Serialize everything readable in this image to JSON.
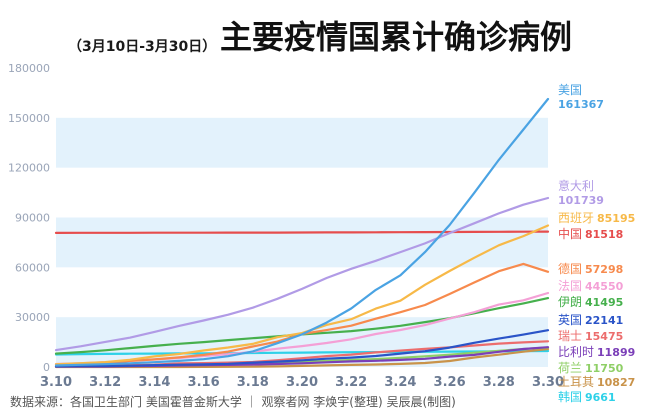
{
  "header": {
    "subtitle": "（3月10日-3月30日）",
    "title": "主要疫情国累计确诊病例"
  },
  "source": "数据来源：各国卫生部门 美国霍普金斯大学 ｜ 观察者网 李焕宇(整理) 吴辰晨(制图)",
  "colors": {
    "band": "#e3f2fc",
    "axis_text": "#9aa5b8",
    "x_tick_text": "#6b7a92"
  },
  "chart_data": {
    "type": "line",
    "title": "主要疫情国累计确诊病例",
    "subtitle": "（3月10日-3月30日）",
    "xlabel": "",
    "ylabel": "",
    "x": [
      "3.10",
      "3.11",
      "3.12",
      "3.13",
      "3.14",
      "3.15",
      "3.16",
      "3.17",
      "3.18",
      "3.19",
      "3.20",
      "3.21",
      "3.22",
      "3.23",
      "3.24",
      "3.25",
      "3.26",
      "3.27",
      "3.28",
      "3.29",
      "3.30"
    ],
    "x_ticks": [
      "3.10",
      "3.12",
      "3.14",
      "3.16",
      "3.18",
      "3.20",
      "3.22",
      "3.24",
      "3.26",
      "3.28",
      "3.30"
    ],
    "ylim": [
      0,
      180000
    ],
    "y_ticks": [
      0,
      30000,
      60000,
      90000,
      120000,
      150000,
      180000
    ],
    "y_tick_labels": [
      "0",
      "30000",
      "60000",
      "90000",
      "120000",
      "150000",
      "180000"
    ],
    "grid": "alternating horizontal bands",
    "legend": "labels at right end of lines",
    "series": [
      {
        "name": "美国",
        "value_label": "161367",
        "color": "#4aa3e3",
        "values": [
          900,
          1300,
          1700,
          2200,
          2900,
          3700,
          4700,
          6500,
          9400,
          14300,
          19600,
          26700,
          35200,
          46400,
          55200,
          69200,
          85500,
          104800,
          124700,
          143000,
          161367
        ]
      },
      {
        "name": "意大利",
        "value_label": "101739",
        "color": "#b19be6",
        "values": [
          10149,
          12462,
          15113,
          17660,
          21157,
          24747,
          27980,
          31506,
          35713,
          41035,
          47021,
          53578,
          59138,
          63927,
          69176,
          74386,
          80589,
          86498,
          92472,
          97689,
          101739
        ]
      },
      {
        "name": "西班牙",
        "value_label": "85195",
        "color": "#f7b948",
        "values": [
          1695,
          2277,
          2950,
          4334,
          6391,
          7798,
          9942,
          11748,
          13910,
          17963,
          20410,
          25374,
          28768,
          35136,
          39885,
          49515,
          57786,
          65719,
          73235,
          78797,
          85195
        ]
      },
      {
        "name": "中国",
        "value_label": "81518",
        "color": "#e64d4d",
        "values": [
          80754,
          80778,
          80793,
          80813,
          80824,
          80844,
          80860,
          80881,
          80894,
          80928,
          80967,
          81008,
          81054,
          81093,
          81171,
          81218,
          81285,
          81340,
          81394,
          81439,
          81518
        ]
      },
      {
        "name": "德国",
        "value_label": "57298",
        "color": "#f78a4d",
        "values": [
          1457,
          1908,
          2078,
          3675,
          4585,
          5795,
          7272,
          9257,
          12327,
          15320,
          19848,
          22213,
          24873,
          29056,
          32986,
          37323,
          43938,
          50871,
          57695,
          62095,
          57298
        ]
      },
      {
        "name": "法国",
        "value_label": "44550",
        "color": "#f4a0d6",
        "values": [
          1784,
          2281,
          2876,
          3661,
          4499,
          5423,
          6633,
          7730,
          9134,
          10995,
          12612,
          14459,
          16689,
          19856,
          22304,
          25233,
          29155,
          32964,
          37575,
          40174,
          44550
        ]
      },
      {
        "name": "伊朗",
        "value_label": "41495",
        "color": "#46b04d",
        "values": [
          8042,
          9000,
          10075,
          11364,
          12729,
          13938,
          14991,
          16169,
          17361,
          18407,
          19644,
          20610,
          21638,
          23049,
          24811,
          27017,
          29406,
          32332,
          35408,
          38309,
          41495
        ]
      },
      {
        "name": "英国",
        "value_label": "22141",
        "color": "#2a54c8",
        "values": [
          382,
          456,
          590,
          798,
          1140,
          1391,
          1543,
          1950,
          2626,
          3269,
          3983,
          5018,
          5683,
          6650,
          8077,
          9529,
          11658,
          14543,
          17089,
          19522,
          22141
        ]
      },
      {
        "name": "瑞士",
        "value_label": "15475",
        "color": "#ec6d6d",
        "values": [
          491,
          645,
          858,
          1125,
          1359,
          2200,
          2330,
          2650,
          3028,
          4075,
          5294,
          6575,
          7474,
          8795,
          9877,
          10897,
          11811,
          12928,
          14076,
          14829,
          15475
        ]
      },
      {
        "name": "比利时",
        "value_label": "11899",
        "color": "#7b3fb8",
        "values": [
          267,
          314,
          314,
          559,
          689,
          886,
          1058,
          1243,
          1486,
          1795,
          2257,
          2815,
          3401,
          3743,
          4269,
          4937,
          6235,
          7284,
          9134,
          10836,
          11899
        ]
      },
      {
        "name": "荷兰",
        "value_label": "11750",
        "color": "#8fcf66",
        "values": [
          382,
          503,
          614,
          804,
          959,
          1135,
          1413,
          1705,
          2051,
          2460,
          2994,
          3631,
          4204,
          4749,
          5560,
          6412,
          7431,
          8603,
          9762,
          10866,
          11750
        ]
      },
      {
        "name": "土耳其",
        "value_label": "10827",
        "color": "#c9934a",
        "values": [
          0,
          1,
          1,
          5,
          6,
          18,
          47,
          98,
          191,
          359,
          670,
          947,
          1236,
          1529,
          1872,
          2433,
          3629,
          5698,
          7402,
          9217,
          10827
        ]
      },
      {
        "name": "韩国",
        "value_label": "9661",
        "color": "#2ed1e8",
        "values": [
          7513,
          7755,
          7869,
          7979,
          8086,
          8162,
          8236,
          8320,
          8413,
          8565,
          8652,
          8799,
          8897,
          8961,
          9037,
          9137,
          9241,
          9332,
          9478,
          9583,
          9661
        ]
      }
    ]
  }
}
